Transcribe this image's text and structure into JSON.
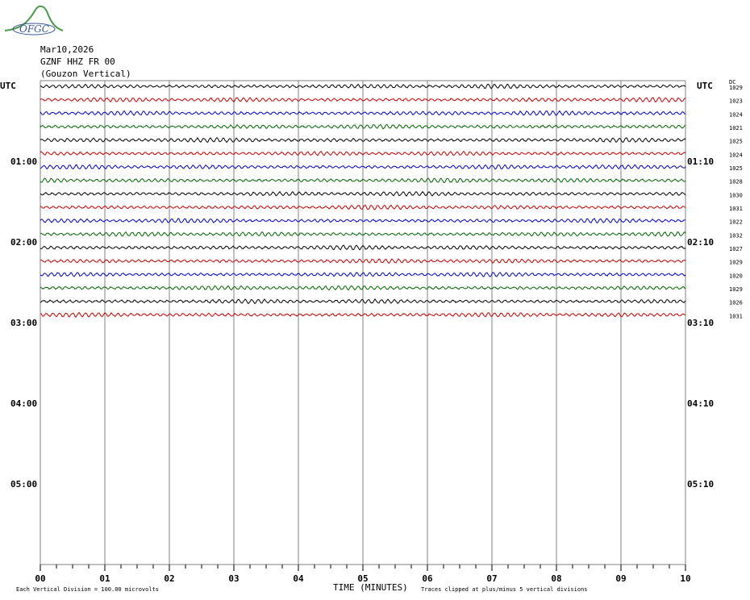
{
  "logo": {
    "text": "OFGC"
  },
  "header": {
    "date": "Mar10,2026",
    "station": "GZNF HHZ FR 00",
    "description": "(Gouzon Vertical)"
  },
  "colors": {
    "grid": "#808080",
    "traces": [
      "#000000",
      "#cc0000",
      "#0000cc",
      "#006600"
    ]
  },
  "chart_data": {
    "type": "line",
    "xlabel": "TIME (MINUTES)",
    "x_ticks": [
      "00",
      "01",
      "02",
      "03",
      "04",
      "05",
      "06",
      "07",
      "08",
      "09",
      "10"
    ],
    "xlim": [
      0,
      10
    ],
    "left_axis_title": "UTC",
    "right_axis_title": "UTC",
    "dc_title": "DC",
    "left_hour_labels": [
      "01:00",
      "02:00",
      "03:00",
      "04:00",
      "05:00"
    ],
    "right_hour_labels": [
      "01:10",
      "02:10",
      "03:10",
      "04:10",
      "05:10"
    ],
    "trace_dc_offsets": [
      "1029",
      "1023",
      "1024",
      "1021",
      "1025",
      "1024",
      "1025",
      "1028",
      "1030",
      "1031",
      "1022",
      "1032",
      "1027",
      "1029",
      "1020",
      "1029",
      "1026",
      "1031"
    ],
    "footer_scale": "Each Vertical Division = 100.00 microvolts",
    "footer_clip": "Traces clipped at plus/minus 5 vertical divisions"
  }
}
